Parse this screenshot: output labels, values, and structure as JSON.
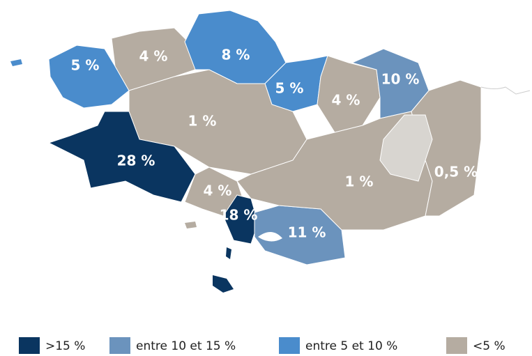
{
  "regions": [
    {
      "label": "5 %",
      "color": "#4a8ccc"
    },
    {
      "label": "4 %",
      "color": "#b5aca1"
    },
    {
      "label": "8 %",
      "color": "#4a8ccc"
    },
    {
      "label": "5 %",
      "color": "#4a8ccc"
    },
    {
      "label": "4 %",
      "color": "#b5aca1"
    },
    {
      "label": "10 %",
      "color": "#6b93bd"
    },
    {
      "label": "1 %",
      "color": "#b5aca1"
    },
    {
      "label": "28 %",
      "color": "#0a3560"
    },
    {
      "label": "4 %",
      "color": "#b5aca1"
    },
    {
      "label": "18 %",
      "color": "#0a3560"
    },
    {
      "label": "11 %",
      "color": "#6b93bd"
    },
    {
      "label": "1 %",
      "color": "#b5aca1"
    },
    {
      "label": "0,5 %",
      "color": "#b5aca1"
    }
  ],
  "legend": [
    {
      "label": ">15 %",
      "color": "#0a3560"
    },
    {
      "label": "entre 10 et 15 %",
      "color": "#6b93bd"
    },
    {
      "label": "entre 5 et 10 %",
      "color": "#4a8ccc"
    },
    {
      "label": "<5 %",
      "color": "#b5aca1"
    }
  ]
}
